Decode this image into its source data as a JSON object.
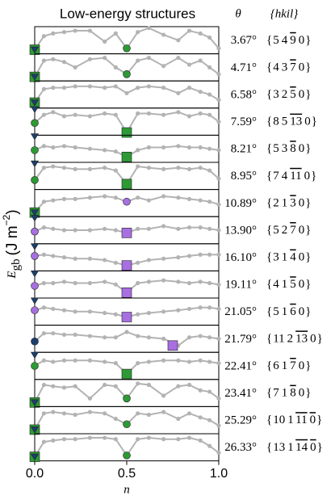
{
  "chart_data": {
    "type": "line",
    "title": "Low-energy structures",
    "angle_header": "θ",
    "index_header": "{hkil}",
    "index_open": "{",
    "index_close": "}",
    "xlabel": "n",
    "ylabel": "E",
    "ylabel_sub": "gb",
    "ylabel_unit": "(J m",
    "ylabel_sup": "−2",
    "ylabel_close": ")",
    "xlim": [
      0,
      1
    ],
    "xticks": [
      {
        "value": 0,
        "label": "0.0"
      },
      {
        "value": 0.5,
        "label": "0.5"
      },
      {
        "value": 1,
        "label": "1.0"
      }
    ],
    "ylim": [
      0,
      1
    ],
    "line_color": "#b3b3b3",
    "x": [
      0,
      0.05,
      0.1,
      0.16,
      0.22,
      0.3,
      0.38,
      0.44,
      0.5,
      0.56,
      0.62,
      0.7,
      0.78,
      0.84,
      0.9,
      0.95,
      1
    ],
    "panels": [
      {
        "angle": "3.67°",
        "index": [
          "5",
          "4",
          "9",
          "0"
        ],
        "bar": [
          false,
          false,
          true,
          false
        ],
        "values": [
          0.15,
          0.65,
          0.75,
          0.8,
          0.85,
          0.85,
          0.45,
          0.75,
          0.2,
          0.8,
          0.95,
          0.7,
          0.5,
          0.85,
          0.75,
          0.6,
          0.2
        ],
        "markers": [
          {
            "shape": "square",
            "color": "#2e9a35",
            "x": 0,
            "value": 0.15
          },
          {
            "shape": "triangle",
            "color": "#1c3f6e",
            "x": 0,
            "value": 0.15
          },
          {
            "shape": "circle",
            "color": "#2e9a35",
            "x": 0.5,
            "value": 0.2
          }
        ]
      },
      {
        "angle": "4.71°",
        "index": [
          "4",
          "3",
          "7",
          "0"
        ],
        "bar": [
          false,
          false,
          true,
          false
        ],
        "values": [
          0.15,
          0.75,
          0.8,
          0.7,
          0.5,
          0.8,
          0.85,
          0.5,
          0.25,
          0.75,
          0.85,
          0.55,
          0.85,
          0.6,
          0.75,
          0.5,
          0.25
        ],
        "markers": [
          {
            "shape": "square",
            "color": "#2e9a35",
            "x": 0,
            "value": 0.15
          },
          {
            "shape": "triangle",
            "color": "#1c3f6e",
            "x": 0,
            "value": 0.15
          },
          {
            "shape": "circle",
            "color": "#2e9a35",
            "x": 0.5,
            "value": 0.25
          }
        ]
      },
      {
        "angle": "6.58°",
        "index": [
          "3",
          "2",
          "5",
          "0"
        ],
        "bar": [
          false,
          false,
          true,
          false
        ],
        "values": [
          0.2,
          0.7,
          0.75,
          0.75,
          0.8,
          0.8,
          0.75,
          0.8,
          0.55,
          0.75,
          0.8,
          0.75,
          0.55,
          0.75,
          0.6,
          0.5,
          0.3
        ],
        "markers": [
          {
            "shape": "square",
            "color": "#2e9a35",
            "x": 0,
            "value": 0.2
          },
          {
            "shape": "triangle",
            "color": "#1c3f6e",
            "x": 0,
            "value": 0.2
          }
        ]
      },
      {
        "angle": "7.59°",
        "index": [
          "8",
          "5",
          "13",
          "0"
        ],
        "bar": [
          false,
          false,
          true,
          false
        ],
        "values": [
          0.45,
          0.75,
          0.85,
          0.7,
          0.75,
          0.7,
          0.8,
          0.75,
          0.1,
          0.8,
          0.8,
          0.75,
          0.85,
          0.7,
          0.8,
          0.75,
          0.5
        ],
        "markers": [
          {
            "shape": "triangle",
            "color": "#1c3f6e",
            "x": 0,
            "value": 0.95
          },
          {
            "shape": "circle",
            "color": "#2e9a35",
            "x": 0,
            "value": 0.45
          },
          {
            "shape": "square",
            "color": "#2e9a35",
            "x": 0.5,
            "value": 0.1
          }
        ]
      },
      {
        "angle": "8.21°",
        "index": [
          "5",
          "3",
          "8",
          "0"
        ],
        "bar": [
          false,
          false,
          true,
          false
        ],
        "values": [
          0.45,
          0.6,
          0.55,
          0.6,
          0.55,
          0.5,
          0.45,
          0.4,
          0.2,
          0.45,
          0.55,
          0.55,
          0.6,
          0.55,
          0.55,
          0.5,
          0.45
        ],
        "markers": [
          {
            "shape": "triangle",
            "color": "#1c3f6e",
            "x": 0,
            "value": 0.95
          },
          {
            "shape": "circle",
            "color": "#2e9a35",
            "x": 0,
            "value": 0.45
          },
          {
            "shape": "square",
            "color": "#2e9a35",
            "x": 0.5,
            "value": 0.2
          }
        ]
      },
      {
        "angle": "8.95°",
        "index": [
          "7",
          "4",
          "11",
          "0"
        ],
        "bar": [
          false,
          false,
          true,
          false
        ],
        "values": [
          0.35,
          0.8,
          0.85,
          0.8,
          0.75,
          0.75,
          0.8,
          0.7,
          0.2,
          0.85,
          0.8,
          0.75,
          0.8,
          0.75,
          0.8,
          0.7,
          0.4
        ],
        "markers": [
          {
            "shape": "triangle",
            "color": "#1c3f6e",
            "x": 0,
            "value": 0.95
          },
          {
            "shape": "circle",
            "color": "#2e9a35",
            "x": 0,
            "value": 0.35
          },
          {
            "shape": "square",
            "color": "#2e9a35",
            "x": 0.5,
            "value": 0.2
          }
        ]
      },
      {
        "angle": "10.89°",
        "index": [
          "2",
          "1",
          "3",
          "0"
        ],
        "bar": [
          false,
          false,
          true,
          false
        ],
        "values": [
          0.15,
          0.55,
          0.6,
          0.65,
          0.65,
          0.7,
          0.75,
          0.7,
          0.55,
          0.7,
          0.6,
          0.75,
          0.7,
          0.65,
          0.6,
          0.55,
          0.45
        ],
        "markers": [
          {
            "shape": "square",
            "color": "#2e9a35",
            "x": 0,
            "value": 0.15
          },
          {
            "shape": "triangle",
            "color": "#1c3f6e",
            "x": 0,
            "value": 0.15
          },
          {
            "shape": "circle",
            "color": "#a86fe0",
            "x": 0.5,
            "value": 0.55
          }
        ]
      },
      {
        "angle": "13.90°",
        "index": [
          "5",
          "2",
          "7",
          "0"
        ],
        "bar": [
          false,
          false,
          true,
          false
        ],
        "values": [
          0.45,
          0.6,
          0.55,
          0.5,
          0.5,
          0.5,
          0.55,
          0.5,
          0.4,
          0.55,
          0.55,
          0.65,
          0.55,
          0.6,
          0.6,
          0.55,
          0.5
        ],
        "markers": [
          {
            "shape": "triangle",
            "color": "#1c3f6e",
            "x": 0,
            "value": 0.95
          },
          {
            "shape": "circle",
            "color": "#a86fe0",
            "x": 0,
            "value": 0.45
          },
          {
            "shape": "square",
            "color": "#a86fe0",
            "x": 0.5,
            "value": 0.4
          }
        ]
      },
      {
        "angle": "16.10°",
        "index": [
          "3",
          "1",
          "4",
          "0"
        ],
        "bar": [
          false,
          false,
          true,
          false
        ],
        "values": [
          0.55,
          0.6,
          0.55,
          0.5,
          0.45,
          0.45,
          0.4,
          0.3,
          0.2,
          0.3,
          0.4,
          0.45,
          0.5,
          0.55,
          0.6,
          0.6,
          0.6
        ],
        "markers": [
          {
            "shape": "triangle",
            "color": "#1c3f6e",
            "x": 0,
            "value": 0.9
          },
          {
            "shape": "circle",
            "color": "#a86fe0",
            "x": 0,
            "value": 0.55
          },
          {
            "shape": "square",
            "color": "#a86fe0",
            "x": 0.5,
            "value": 0.2
          }
        ]
      },
      {
        "angle": "19.11°",
        "index": [
          "4",
          "1",
          "5",
          "0"
        ],
        "bar": [
          false,
          false,
          true,
          false
        ],
        "values": [
          0.45,
          0.55,
          0.55,
          0.6,
          0.55,
          0.55,
          0.6,
          0.5,
          0.2,
          0.55,
          0.6,
          0.65,
          0.6,
          0.55,
          0.6,
          0.55,
          0.5
        ],
        "markers": [
          {
            "shape": "triangle",
            "color": "#1c3f6e",
            "x": 0,
            "value": 0.9
          },
          {
            "shape": "circle",
            "color": "#a86fe0",
            "x": 0,
            "value": 0.45
          },
          {
            "shape": "square",
            "color": "#a86fe0",
            "x": 0.5,
            "value": 0.2
          }
        ]
      },
      {
        "angle": "21.05°",
        "index": [
          "5",
          "1",
          "6",
          "0"
        ],
        "bar": [
          false,
          false,
          true,
          false
        ],
        "values": [
          0.55,
          0.65,
          0.6,
          0.55,
          0.5,
          0.5,
          0.45,
          0.4,
          0.3,
          0.4,
          0.45,
          0.5,
          0.55,
          0.6,
          0.65,
          0.65,
          0.6
        ],
        "markers": [
          {
            "shape": "triangle",
            "color": "#1c3f6e",
            "x": 0,
            "value": 0.9
          },
          {
            "shape": "circle",
            "color": "#a86fe0",
            "x": 0,
            "value": 0.55
          },
          {
            "shape": "square",
            "color": "#a86fe0",
            "x": 0.5,
            "value": 0.3
          }
        ]
      },
      {
        "angle": "21.79°",
        "index": [
          "11",
          "2",
          "13",
          "0"
        ],
        "bar": [
          false,
          false,
          true,
          false
        ],
        "values": [
          0.4,
          0.7,
          0.7,
          0.65,
          0.65,
          0.6,
          0.55,
          0.55,
          0.75,
          0.6,
          0.55,
          0.5,
          0.25,
          0.55,
          0.6,
          0.55,
          0.5
        ],
        "markers": [
          {
            "shape": "circle",
            "color": "#1c3f6e",
            "x": 0,
            "value": 0.4
          },
          {
            "shape": "square",
            "color": "#a86fe0",
            "x": 0.75,
            "value": 0.25
          }
        ]
      },
      {
        "angle": "22.41°",
        "index": [
          "6",
          "1",
          "7",
          "0"
        ],
        "bar": [
          false,
          false,
          true,
          false
        ],
        "values": [
          0.5,
          0.7,
          0.65,
          0.7,
          0.7,
          0.7,
          0.65,
          0.6,
          0.2,
          0.6,
          0.65,
          0.7,
          0.7,
          0.65,
          0.7,
          0.65,
          0.6
        ],
        "markers": [
          {
            "shape": "triangle",
            "color": "#1c3f6e",
            "x": 0,
            "value": 0.9
          },
          {
            "shape": "circle",
            "color": "#2e9a35",
            "x": 0,
            "value": 0.5
          },
          {
            "shape": "square",
            "color": "#2e9a35",
            "x": 0.5,
            "value": 0.2
          }
        ]
      },
      {
        "angle": "23.41°",
        "index": [
          "7",
          "1",
          "8",
          "0"
        ],
        "bar": [
          false,
          false,
          true,
          false
        ],
        "values": [
          0.15,
          0.8,
          0.75,
          0.7,
          0.75,
          0.3,
          0.8,
          0.75,
          0.3,
          0.85,
          0.8,
          0.4,
          0.75,
          0.8,
          0.6,
          0.55,
          0.3
        ],
        "markers": [
          {
            "shape": "square",
            "color": "#2e9a35",
            "x": 0,
            "value": 0.15
          },
          {
            "shape": "triangle",
            "color": "#1c3f6e",
            "x": 0,
            "value": 0.15
          },
          {
            "shape": "circle",
            "color": "#2e9a35",
            "x": 0.5,
            "value": 0.3
          }
        ]
      },
      {
        "angle": "25.29°",
        "index": [
          "10",
          "1",
          "11",
          "0"
        ],
        "bar": [
          false,
          false,
          true,
          true
        ],
        "values": [
          0.15,
          0.75,
          0.8,
          0.75,
          0.7,
          0.8,
          0.75,
          0.55,
          0.35,
          0.75,
          0.7,
          0.8,
          0.55,
          0.75,
          0.6,
          0.5,
          0.3
        ],
        "markers": [
          {
            "shape": "square",
            "color": "#2e9a35",
            "x": 0,
            "value": 0.15
          },
          {
            "shape": "triangle",
            "color": "#1c3f6e",
            "x": 0,
            "value": 0.15
          },
          {
            "shape": "circle",
            "color": "#2e9a35",
            "x": 0.5,
            "value": 0.35
          }
        ]
      },
      {
        "angle": "26.33°",
        "index": [
          "13",
          "1",
          "14",
          "0"
        ],
        "bar": [
          false,
          false,
          true,
          true
        ],
        "values": [
          0.15,
          0.7,
          0.75,
          0.8,
          0.8,
          0.85,
          0.85,
          0.8,
          0.2,
          0.8,
          0.85,
          0.8,
          0.8,
          0.85,
          0.75,
          0.55,
          0.3
        ],
        "markers": [
          {
            "shape": "square",
            "color": "#2e9a35",
            "x": 0,
            "value": 0.15
          },
          {
            "shape": "triangle",
            "color": "#1c3f6e",
            "x": 0,
            "value": 0.15
          },
          {
            "shape": "circle",
            "color": "#2e9a35",
            "x": 0.5,
            "value": 0.2
          }
        ]
      }
    ]
  }
}
